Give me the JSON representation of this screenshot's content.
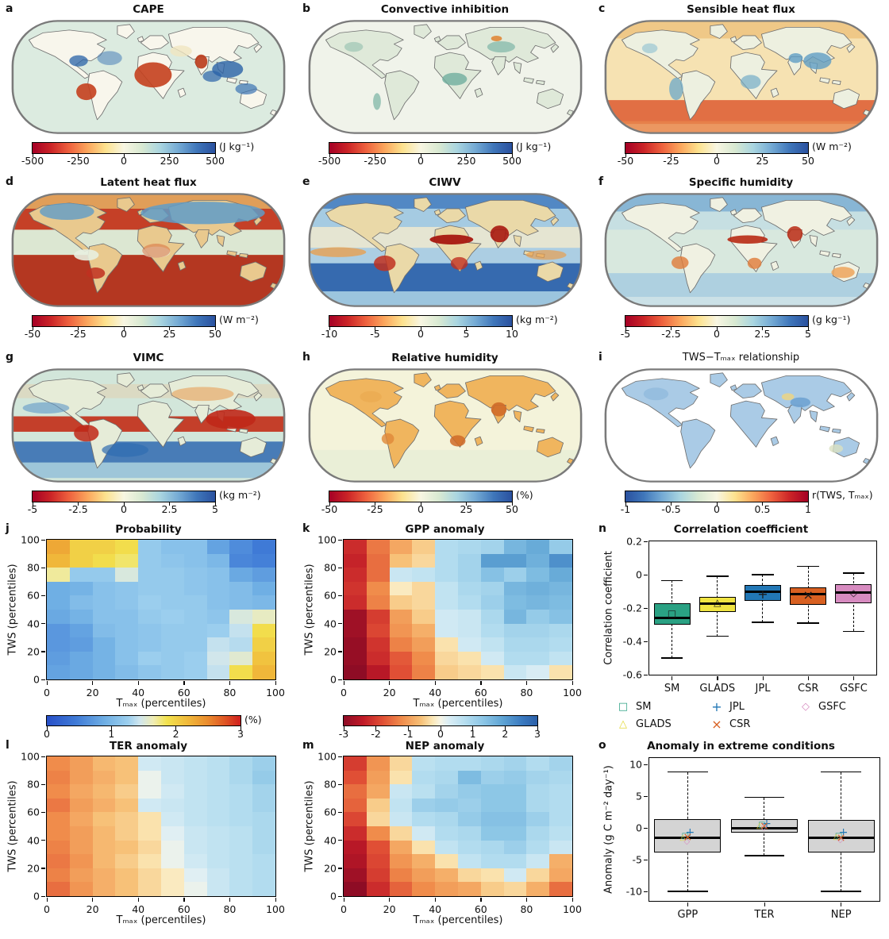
{
  "panels": {
    "a": {
      "letter": "a",
      "title": "CAPE",
      "map_colors": {
        "ocean": "#dcebe0",
        "land": "#f8f6ec"
      },
      "colorbar": {
        "ticks": [
          "-500",
          "-250",
          "0",
          "250",
          "500"
        ],
        "unit": "(J kg⁻¹)",
        "colormap": "map_rdylbu"
      }
    },
    "b": {
      "letter": "b",
      "title": "Convective inhibition",
      "map_colors": {
        "ocean": "#f0f3ea",
        "land": "#dfe9d9"
      },
      "colorbar": {
        "ticks": [
          "-500",
          "-250",
          "0",
          "250",
          "500"
        ],
        "unit": "(J kg⁻¹)",
        "colormap": "map_rdylbu"
      }
    },
    "c": {
      "letter": "c",
      "title": "Sensible heat flux",
      "map_colors": {
        "ocean": "#f6e2b2",
        "land": "#edf0e0"
      },
      "colorbar": {
        "ticks": [
          "-50",
          "-25",
          "0",
          "25",
          "50"
        ],
        "unit": "(W m⁻²)",
        "colormap": "map_rdylbu"
      }
    },
    "d": {
      "letter": "d",
      "title": "Latent heat flux",
      "map_colors": {
        "ocean": "#d9a869",
        "land": "#e9c98e"
      },
      "colorbar": {
        "ticks": [
          "-50",
          "-25",
          "0",
          "25",
          "50"
        ],
        "unit": "(W m⁻²)",
        "colormap": "map_rdylbu"
      }
    },
    "e": {
      "letter": "e",
      "title": "CIWV",
      "map_colors": {
        "ocean": "#82b6dc",
        "land": "#ead9a8"
      },
      "colorbar": {
        "ticks": [
          "-10",
          "-5",
          "0",
          "5",
          "10"
        ],
        "unit": "(kg m⁻²)",
        "colormap": "map_rdylbu"
      }
    },
    "f": {
      "letter": "f",
      "title": "Specific humidity",
      "map_colors": {
        "ocean": "#d8e8de",
        "land": "#f0f1e2"
      },
      "colorbar": {
        "ticks": [
          "-5",
          "-2.5",
          "0",
          "2.5",
          "5"
        ],
        "unit": "(g kg⁻¹)",
        "colormap": "map_rdylbu"
      }
    },
    "g": {
      "letter": "g",
      "title": "VIMC",
      "map_colors": {
        "ocean": "#d2e6da",
        "land": "#e6ecd8"
      },
      "colorbar": {
        "ticks": [
          "-5",
          "-2.5",
          "0",
          "2.5",
          "5"
        ],
        "unit": "(kg m⁻²)",
        "colormap": "map_rdylbu"
      }
    },
    "h": {
      "letter": "h",
      "title": "Relative humidity",
      "map_colors": {
        "ocean": "#f4f3da",
        "land": "#f0b55e"
      },
      "colorbar": {
        "ticks": [
          "-50",
          "-25",
          "0",
          "25",
          "50"
        ],
        "unit": "(%)",
        "colormap": "map_rdylbu"
      }
    },
    "i": {
      "letter": "i",
      "title": "TWS−Tₘₐₓ relationship",
      "map_colors": {
        "ocean": "#ffffff",
        "land": "#aacbe6"
      },
      "colorbar": {
        "ticks": [
          "-1",
          "-0.5",
          "0",
          "0.5",
          "1"
        ],
        "unit": "r(TWS, Tₘₐₓ)",
        "colormap": "map_rdylbu_r"
      }
    },
    "j": {
      "letter": "j"
    },
    "k": {
      "letter": "k"
    },
    "l": {
      "letter": "l"
    },
    "m": {
      "letter": "m"
    },
    "n": {
      "letter": "n"
    },
    "o": {
      "letter": "o"
    }
  },
  "legend": {
    "items": [
      {
        "label": "SM",
        "marker": "square",
        "color": "#2aa183"
      },
      {
        "label": "GLADS",
        "marker": "triangle",
        "color": "#e3d93c"
      },
      {
        "label": "JPL",
        "marker": "plus",
        "color": "#2277b5"
      },
      {
        "label": "CSR",
        "marker": "x",
        "color": "#d86021"
      },
      {
        "label": "GSFC",
        "marker": "diamond",
        "color": "#d78bc0"
      }
    ]
  },
  "chart_data": [
    {
      "panel": "j",
      "type": "heatmap",
      "title": "Probability",
      "xlabel": "Tₘₐₓ (percentiles)",
      "ylabel": "TWS (percentiles)",
      "x_ticks": [
        "0",
        "20",
        "40",
        "60",
        "80",
        "100"
      ],
      "y_ticks": [
        "0",
        "20",
        "40",
        "60",
        "80",
        "100"
      ],
      "colormap": "jet",
      "range": [
        0,
        3
      ],
      "grid": false,
      "colorbar": {
        "ticks": [
          "0",
          "1",
          "2",
          "3"
        ],
        "unit": "(%)"
      },
      "rows_top_to_bottom": true,
      "values": [
        [
          2.3,
          2.0,
          2.0,
          1.9,
          1.2,
          1.1,
          1.1,
          0.8,
          0.6,
          0.45
        ],
        [
          2.2,
          2.0,
          1.9,
          1.8,
          1.2,
          1.15,
          1.1,
          1.0,
          0.55,
          0.5
        ],
        [
          1.7,
          1.2,
          1.2,
          1.5,
          1.2,
          1.2,
          1.15,
          1.1,
          0.85,
          0.75
        ],
        [
          0.9,
          0.95,
          1.1,
          1.15,
          1.2,
          1.2,
          1.15,
          1.1,
          1.05,
          0.9
        ],
        [
          0.9,
          1.05,
          1.1,
          1.15,
          1.25,
          1.2,
          1.2,
          1.1,
          1.05,
          1.0
        ],
        [
          0.85,
          0.95,
          1.1,
          1.1,
          1.2,
          1.25,
          1.2,
          1.15,
          1.5,
          1.6
        ],
        [
          0.7,
          0.8,
          1.05,
          1.1,
          1.15,
          1.2,
          1.2,
          1.25,
          1.4,
          1.9
        ],
        [
          0.7,
          0.75,
          0.95,
          1.1,
          1.15,
          1.2,
          1.2,
          1.4,
          1.35,
          2.0
        ],
        [
          0.75,
          0.85,
          0.95,
          1.1,
          1.25,
          1.2,
          1.25,
          1.45,
          1.55,
          2.1
        ],
        [
          0.8,
          0.85,
          0.95,
          1.05,
          1.15,
          1.2,
          1.25,
          1.4,
          1.9,
          2.2
        ]
      ]
    },
    {
      "panel": "k",
      "type": "heatmap",
      "title": "GPP anomaly",
      "xlabel": "Tₘₐₓ (percentiles)",
      "ylabel": "TWS (percentiles)",
      "x_ticks": [
        "0",
        "20",
        "40",
        "60",
        "80",
        "100"
      ],
      "y_ticks": [
        "0",
        "20",
        "40",
        "60",
        "80",
        "100"
      ],
      "colormap": "rdbu",
      "range": [
        -3,
        3
      ],
      "grid": false,
      "colorbar": {
        "ticks": [
          "-3",
          "-2",
          "-1",
          "0",
          "1",
          "2",
          "3"
        ],
        "unit": ""
      },
      "rows_top_to_bottom": true,
      "values": [
        [
          -2.2,
          -1.4,
          -0.9,
          -0.5,
          0.8,
          0.9,
          1.0,
          1.6,
          1.8,
          1.2
        ],
        [
          -2.3,
          -1.5,
          -0.6,
          -0.4,
          0.8,
          1.0,
          2.0,
          2.0,
          1.7,
          2.2
        ],
        [
          -2.2,
          -1.5,
          0.5,
          0.6,
          0.8,
          1.0,
          1.4,
          1.1,
          1.5,
          1.8
        ],
        [
          -2.1,
          -1.2,
          -0.2,
          -0.4,
          0.6,
          0.9,
          1.0,
          1.6,
          1.7,
          1.6
        ],
        [
          -2.2,
          -1.3,
          -0.5,
          -0.4,
          0.6,
          0.8,
          1.1,
          1.5,
          1.6,
          1.5
        ],
        [
          -2.8,
          -2.0,
          -1.0,
          -0.5,
          0.4,
          0.5,
          0.9,
          1.6,
          1.2,
          1.4
        ],
        [
          -2.8,
          -1.9,
          -1.1,
          -0.8,
          0.4,
          0.5,
          0.8,
          1.0,
          1.0,
          0.9
        ],
        [
          -2.9,
          -2.1,
          -1.3,
          -1.0,
          -0.3,
          0.4,
          0.6,
          0.9,
          0.9,
          0.8
        ],
        [
          -2.9,
          -2.2,
          -1.7,
          -1.2,
          -0.4,
          -0.3,
          0.4,
          0.8,
          0.8,
          0.6
        ],
        [
          -3.0,
          -2.5,
          -1.8,
          -1.3,
          -0.5,
          -0.4,
          -0.3,
          0.5,
          0.3,
          -0.3
        ]
      ]
    },
    {
      "panel": "l",
      "type": "heatmap",
      "title": "TER anomaly",
      "xlabel": "Tₘₐₓ (percentiles)",
      "ylabel": "TWS (percentiles)",
      "x_ticks": [
        "0",
        "20",
        "40",
        "60",
        "80",
        "100"
      ],
      "y_ticks": [
        "0",
        "20",
        "40",
        "60",
        "80",
        "100"
      ],
      "colormap": "rdbu",
      "range": [
        -3,
        3
      ],
      "grid": false,
      "rows_top_to_bottom": true,
      "values": [
        [
          -1.2,
          -1.0,
          -0.7,
          -0.6,
          0.4,
          0.5,
          0.6,
          0.7,
          0.9,
          1.1
        ],
        [
          -1.3,
          -1.0,
          -0.8,
          -0.6,
          0.1,
          0.5,
          0.6,
          0.7,
          0.9,
          1.2
        ],
        [
          -1.2,
          -0.9,
          -0.7,
          -0.5,
          0.1,
          0.4,
          0.6,
          0.7,
          0.8,
          1.0
        ],
        [
          -1.4,
          -1.0,
          -0.8,
          -0.6,
          0.4,
          0.5,
          0.6,
          0.7,
          0.8,
          1.0
        ],
        [
          -1.2,
          -0.9,
          -0.6,
          -0.5,
          -0.3,
          0.4,
          0.6,
          0.7,
          0.8,
          0.9
        ],
        [
          -1.2,
          -1.0,
          -0.7,
          -0.5,
          -0.3,
          0.2,
          0.5,
          0.6,
          0.7,
          0.9
        ],
        [
          -1.3,
          -1.0,
          -0.7,
          -0.6,
          -0.4,
          0.1,
          0.5,
          0.6,
          0.7,
          0.9
        ],
        [
          -1.4,
          -1.1,
          -0.7,
          -0.5,
          -0.3,
          0.1,
          0.4,
          0.6,
          0.7,
          0.8
        ],
        [
          -1.3,
          -1.0,
          -0.8,
          -0.6,
          -0.4,
          -0.2,
          0.2,
          0.5,
          0.7,
          0.8
        ],
        [
          -1.5,
          -1.1,
          -0.8,
          -0.6,
          -0.4,
          -0.2,
          0.1,
          0.5,
          0.7,
          0.8
        ]
      ]
    },
    {
      "panel": "m",
      "type": "heatmap",
      "title": "NEP anomaly",
      "xlabel": "Tₘₐₓ (percentiles)",
      "ylabel": "TWS (percentiles)",
      "x_ticks": [
        "0",
        "20",
        "40",
        "60",
        "80",
        "100"
      ],
      "y_ticks": [
        "0",
        "20",
        "40",
        "60",
        "80",
        "100"
      ],
      "colormap": "rdbu",
      "range": [
        -3,
        3
      ],
      "grid": false,
      "rows_top_to_bottom": true,
      "values": [
        [
          -2.0,
          -1.1,
          -0.4,
          0.7,
          0.8,
          0.8,
          0.9,
          1.0,
          0.8,
          1.0
        ],
        [
          -1.8,
          -1.0,
          -0.3,
          0.8,
          0.9,
          1.5,
          1.1,
          1.2,
          1.0,
          0.9
        ],
        [
          -1.5,
          -0.9,
          0.5,
          0.7,
          1.0,
          1.2,
          1.3,
          1.3,
          0.9,
          0.8
        ],
        [
          -1.6,
          -0.5,
          0.6,
          1.1,
          1.2,
          1.1,
          1.3,
          1.3,
          0.9,
          0.8
        ],
        [
          -1.9,
          -0.4,
          0.5,
          0.8,
          0.9,
          1.2,
          1.4,
          1.4,
          1.1,
          0.8
        ],
        [
          -2.2,
          -1.2,
          -0.4,
          0.4,
          0.8,
          0.9,
          1.3,
          1.3,
          0.9,
          0.7
        ],
        [
          -2.5,
          -1.8,
          -0.9,
          -0.3,
          0.6,
          0.8,
          0.9,
          1.1,
          0.8,
          0.5
        ],
        [
          -2.6,
          -1.9,
          -1.1,
          -0.8,
          -0.3,
          0.6,
          0.8,
          0.8,
          0.5,
          -0.8
        ],
        [
          -2.8,
          -2.0,
          -1.3,
          -1.0,
          -0.8,
          -0.4,
          -0.3,
          0.4,
          -0.4,
          -0.9
        ],
        [
          -3.0,
          -2.2,
          -1.6,
          -1.2,
          -1.0,
          -0.9,
          -0.5,
          -0.4,
          -0.8,
          -1.5
        ]
      ]
    },
    {
      "panel": "n",
      "type": "box",
      "title": "Correlation coefficient",
      "ylabel": "Correlation coefficient",
      "ylim": [
        -0.6,
        0.2
      ],
      "y_tick_labels": [
        "0.2",
        "0",
        "-0.2",
        "-0.4",
        "-0.6"
      ],
      "y_tick_values": [
        0.2,
        0,
        -0.2,
        -0.4,
        -0.6
      ],
      "categories": [
        "SM",
        "GLADS",
        "JPL",
        "CSR",
        "GSFC"
      ],
      "boxes": [
        {
          "label": "SM",
          "color": "#2aa183",
          "marker": "square",
          "low": -0.5,
          "q1": -0.3,
          "med": -0.26,
          "q3": -0.17,
          "high": -0.035,
          "mean": -0.235
        },
        {
          "label": "GLADS",
          "color": "#f0e442",
          "marker": "triangle",
          "low": -0.37,
          "q1": -0.225,
          "med": -0.175,
          "q3": -0.135,
          "high": -0.01,
          "mean": -0.165
        },
        {
          "label": "JPL",
          "color": "#2277b5",
          "marker": "plus",
          "low": -0.285,
          "q1": -0.155,
          "med": -0.1,
          "q3": -0.06,
          "high": 0.0,
          "mean": -0.12
        },
        {
          "label": "CSR",
          "color": "#d86021",
          "marker": "x",
          "low": -0.29,
          "q1": -0.18,
          "med": -0.115,
          "q3": -0.075,
          "high": 0.05,
          "mean": -0.125
        },
        {
          "label": "GSFC",
          "color": "#d78bc0",
          "marker": "diamond",
          "low": -0.34,
          "q1": -0.17,
          "med": -0.105,
          "q3": -0.055,
          "high": 0.01,
          "mean": -0.11
        }
      ]
    },
    {
      "panel": "o",
      "type": "box",
      "title": "Anomaly in extreme conditions",
      "ylabel": "Anomaly (g C m⁻² day⁻¹)",
      "ylim": [
        -11.5,
        11
      ],
      "y_tick_labels": [
        "10",
        "5",
        "0",
        "-5",
        "-10"
      ],
      "y_tick_values": [
        10,
        5,
        0,
        -5,
        -10
      ],
      "categories": [
        "GPP",
        "TER",
        "NEP"
      ],
      "box_fill": "#d4d4d4",
      "boxes": [
        {
          "label": "GPP",
          "low": -10,
          "q1": -3.9,
          "med": -1.6,
          "q3": 1.4,
          "high": 8.8,
          "dataset_markers": {
            "SM": -1.4,
            "GLADS": -1.6,
            "JPL": -0.7,
            "CSR": -1.5,
            "GSFC": -2.2
          }
        },
        {
          "label": "TER",
          "low": -4.4,
          "q1": -0.8,
          "med": -0.1,
          "q3": 1.4,
          "high": 4.8,
          "dataset_markers": {
            "SM": 0.4,
            "GLADS": 0.3,
            "JPL": 0.6,
            "CSR": 0.2,
            "GSFC": 0.0
          }
        },
        {
          "label": "NEP",
          "low": -10,
          "q1": -3.9,
          "med": -1.6,
          "q3": 1.3,
          "high": 8.8,
          "dataset_markers": {
            "SM": -1.4,
            "GLADS": -1.5,
            "JPL": -0.8,
            "CSR": -1.6,
            "GSFC": -2.0
          }
        }
      ]
    }
  ]
}
